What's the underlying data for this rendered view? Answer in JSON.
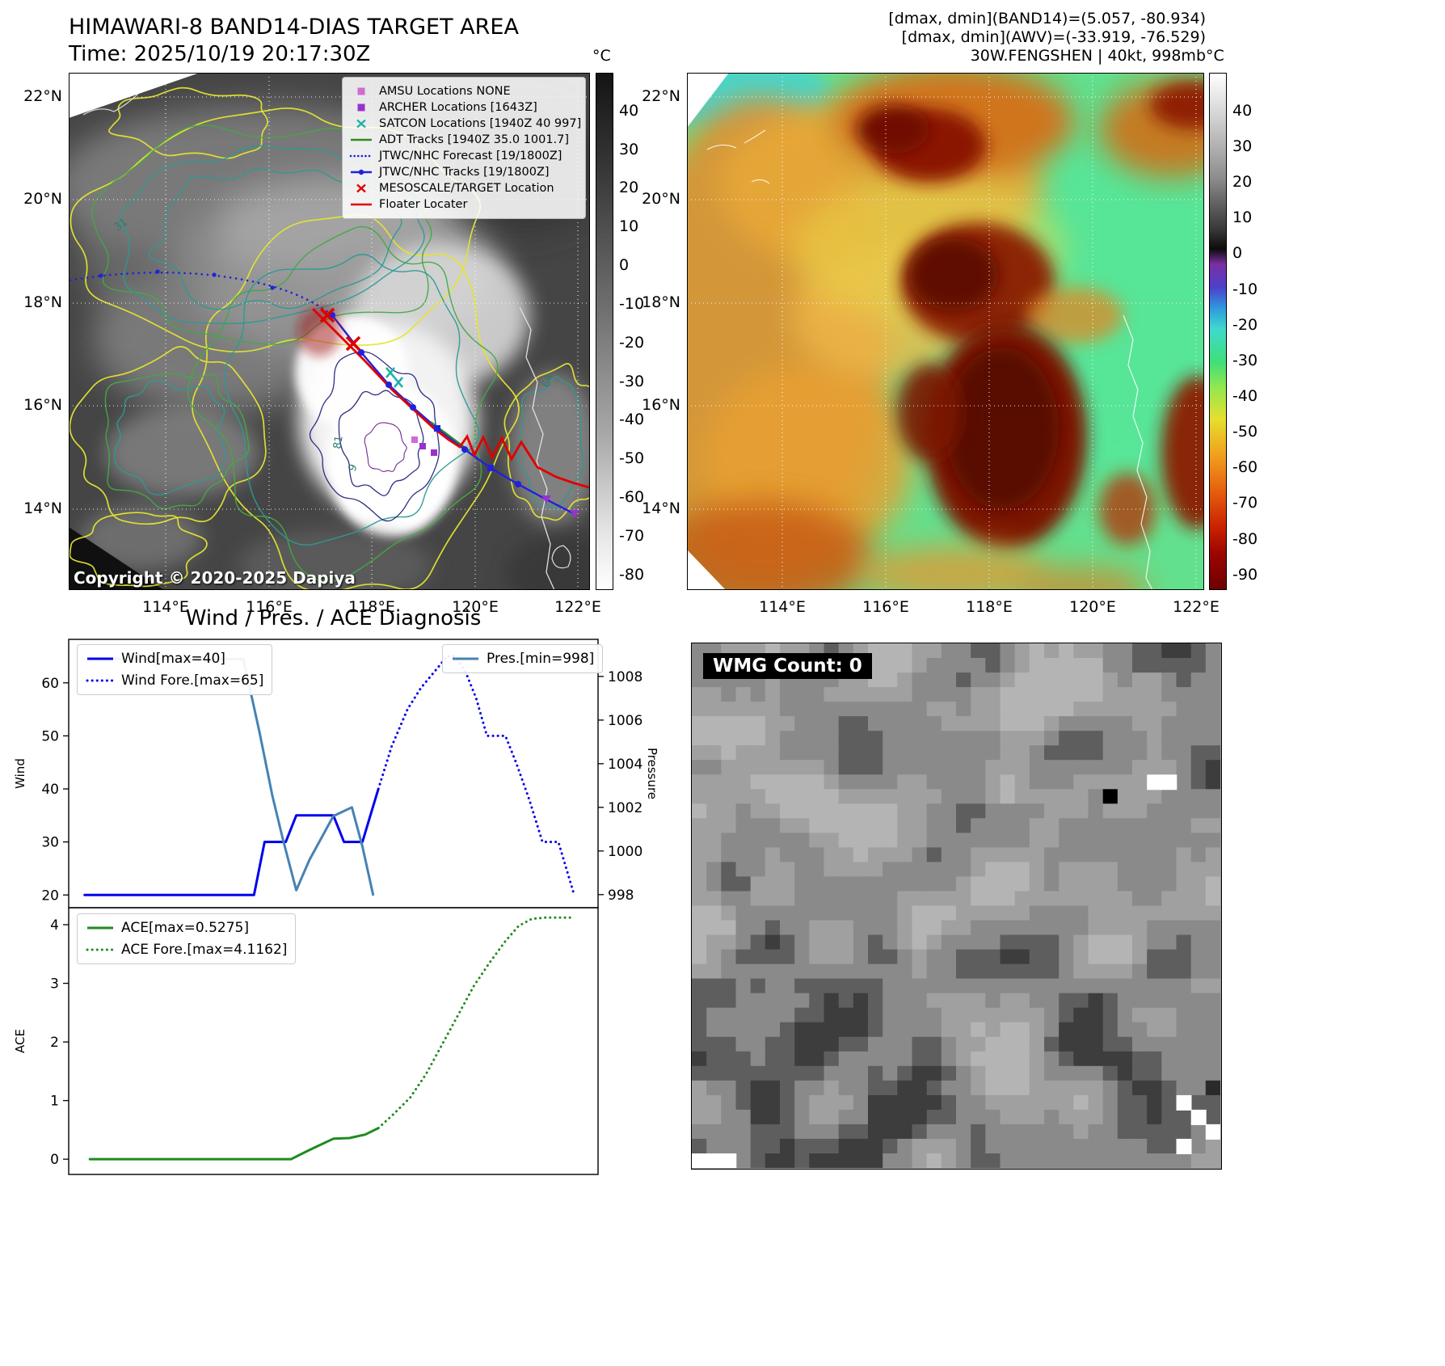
{
  "band14": {
    "title": "HIMAWARI-8 BAND14-DIAS TARGET AREA",
    "time_label": "Time: 2025/10/19 20:17:30Z",
    "copyright": "Copyright © 2020-2025 Dapiya",
    "colorbar_unit": "°C",
    "colorbar_ticks": [
      40,
      30,
      20,
      10,
      0,
      -10,
      -20,
      -30,
      -40,
      -50,
      -60,
      -70,
      -80
    ],
    "lat_labels": [
      "22°N",
      "20°N",
      "18°N",
      "16°N",
      "14°N"
    ],
    "lon_labels": [
      "114°E",
      "116°E",
      "118°E",
      "120°E",
      "122°E"
    ],
    "contour_labels": [
      "31",
      "64",
      "81",
      "9"
    ],
    "legend_items": [
      {
        "label": "AMSU Locations NONE",
        "color": "#cf6ccf",
        "glyph": "square"
      },
      {
        "label": "ARCHER Locations [1643Z]",
        "color": "#9932cc",
        "glyph": "square"
      },
      {
        "label": "SATCON Locations [1940Z 40 997]",
        "color": "#20b2aa",
        "glyph": "x"
      },
      {
        "label": "ADT Tracks [1940Z 35.0 1001.7]",
        "color": "#2e8b22",
        "glyph": "line"
      },
      {
        "label": "JTWC/NHC Forecast [19/1800Z]",
        "color": "#2121dd",
        "glyph": "dotted"
      },
      {
        "label": "JTWC/NHC Tracks [19/1800Z]",
        "color": "#2121dd",
        "glyph": "line-dot"
      },
      {
        "label": "MESOSCALE/TARGET Location",
        "color": "#e00000",
        "glyph": "x"
      },
      {
        "label": "Floater Locater",
        "color": "#e00000",
        "glyph": "line"
      }
    ]
  },
  "awv": {
    "header_lines": [
      "[dmax, dmin](BAND14)=(5.057, -80.934)",
      "[dmax, dmin](AWV)=(-33.919, -76.529)",
      "30W.FENGSHEN | 40kt, 998mb"
    ],
    "colorbar_unit": "°C",
    "colorbar_ticks": [
      40,
      30,
      20,
      10,
      0,
      -10,
      -20,
      -30,
      -40,
      -50,
      -60,
      -70,
      -80,
      -90
    ],
    "lat_labels": [
      "22°N",
      "20°N",
      "18°N",
      "16°N",
      "14°N"
    ],
    "lon_labels": [
      "114°E",
      "116°E",
      "118°E",
      "120°E",
      "122°E"
    ]
  },
  "wmg": {
    "count_label": "WMG Count: 0"
  },
  "chart_data": [
    {
      "type": "line",
      "name": "wind_pressure",
      "title": "Wind / Pres. / ACE Diagnosis",
      "ylabel_left": "Wind",
      "ylabel_right": "Pressure",
      "ylim_left": [
        17.6,
        68.2
      ],
      "yticks_left": [
        20,
        30,
        40,
        50,
        60
      ],
      "ylim_right": [
        997.4,
        1009.7
      ],
      "yticks_right": [
        998,
        1000,
        1002,
        1004,
        1006,
        1008
      ],
      "series": [
        {
          "name": "Wind[max=40]",
          "color": "#0000ee",
          "style": "solid",
          "axis": "left",
          "x": [
            0.03,
            0.35,
            0.37,
            0.41,
            0.43,
            0.5,
            0.52,
            0.555,
            0.57,
            0.585
          ],
          "y": [
            20,
            20,
            30,
            30,
            35,
            35,
            30,
            30,
            35,
            40
          ]
        },
        {
          "name": "Wind Fore.[max=65]",
          "color": "#0000ee",
          "style": "dotted",
          "axis": "left",
          "x": [
            0.585,
            0.61,
            0.64,
            0.665,
            0.69,
            0.715,
            0.73,
            0.75,
            0.77,
            0.79,
            0.825,
            0.845,
            0.87,
            0.895,
            0.925,
            0.955
          ],
          "y": [
            40,
            48,
            55,
            59,
            62,
            65,
            65,
            62,
            57,
            50,
            50,
            45,
            38,
            30,
            30,
            20
          ]
        },
        {
          "name": "Pres.[min=998]",
          "color": "#4682b4",
          "style": "solid",
          "axis": "right",
          "x": [
            0.04,
            0.33,
            0.36,
            0.385,
            0.405,
            0.43,
            0.455,
            0.5,
            0.535,
            0.555,
            0.575
          ],
          "y": [
            1008.8,
            1008.8,
            1005.5,
            1002.5,
            1000.5,
            998.2,
            999.6,
            1001.6,
            1002.0,
            1000.2,
            998.0
          ]
        }
      ]
    },
    {
      "type": "line",
      "name": "ace",
      "ylabel_left": "ACE",
      "ylim_left": [
        -0.26,
        4.29
      ],
      "yticks_left": [
        0,
        1,
        2,
        3,
        4
      ],
      "series": [
        {
          "name": "ACE[max=0.5275]",
          "color": "#1e8c1e",
          "style": "solid",
          "axis": "left",
          "x": [
            0.04,
            0.42,
            0.46,
            0.5,
            0.53,
            0.56,
            0.585
          ],
          "y": [
            0.0,
            0.0,
            0.18,
            0.35,
            0.36,
            0.42,
            0.53
          ]
        },
        {
          "name": "ACE Fore.[max=4.1162]",
          "color": "#1e8c1e",
          "style": "dotted",
          "axis": "left",
          "x": [
            0.585,
            0.615,
            0.645,
            0.675,
            0.705,
            0.735,
            0.765,
            0.795,
            0.825,
            0.85,
            0.875,
            0.9,
            0.955
          ],
          "y": [
            0.53,
            0.78,
            1.05,
            1.45,
            1.95,
            2.45,
            2.95,
            3.35,
            3.72,
            3.98,
            4.1,
            4.12,
            4.12
          ]
        }
      ]
    }
  ]
}
